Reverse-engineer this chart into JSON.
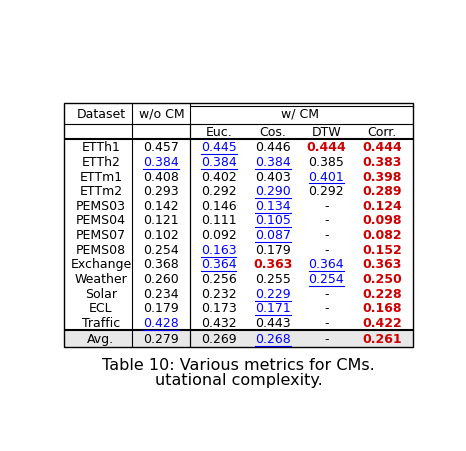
{
  "title": "Table 10: Various metrics for CMs.",
  "subtitle": "utational complexity.",
  "rows": [
    {
      "dataset": "ETTh1",
      "wo_cm": {
        "val": "0.457",
        "blue": false,
        "ul": false,
        "bold": false,
        "red": false
      },
      "euc": {
        "val": "0.445",
        "blue": true,
        "ul": true,
        "bold": false,
        "red": false
      },
      "cos": {
        "val": "0.446",
        "blue": false,
        "ul": false,
        "bold": false,
        "red": false
      },
      "dtw": {
        "val": "0.444",
        "blue": false,
        "ul": false,
        "bold": true,
        "red": true
      },
      "corr": {
        "val": "0.444",
        "blue": false,
        "ul": false,
        "bold": true,
        "red": true
      }
    },
    {
      "dataset": "ETTh2",
      "wo_cm": {
        "val": "0.384",
        "blue": true,
        "ul": true,
        "bold": false,
        "red": false
      },
      "euc": {
        "val": "0.384",
        "blue": true,
        "ul": true,
        "bold": false,
        "red": false
      },
      "cos": {
        "val": "0.384",
        "blue": true,
        "ul": true,
        "bold": false,
        "red": false
      },
      "dtw": {
        "val": "0.385",
        "blue": false,
        "ul": false,
        "bold": false,
        "red": false
      },
      "corr": {
        "val": "0.383",
        "blue": false,
        "ul": false,
        "bold": true,
        "red": true
      }
    },
    {
      "dataset": "ETTm1",
      "wo_cm": {
        "val": "0.408",
        "blue": false,
        "ul": false,
        "bold": false,
        "red": false
      },
      "euc": {
        "val": "0.402",
        "blue": false,
        "ul": false,
        "bold": false,
        "red": false
      },
      "cos": {
        "val": "0.403",
        "blue": false,
        "ul": false,
        "bold": false,
        "red": false
      },
      "dtw": {
        "val": "0.401",
        "blue": true,
        "ul": true,
        "bold": false,
        "red": false
      },
      "corr": {
        "val": "0.398",
        "blue": false,
        "ul": false,
        "bold": true,
        "red": true
      }
    },
    {
      "dataset": "ETTm2",
      "wo_cm": {
        "val": "0.293",
        "blue": false,
        "ul": false,
        "bold": false,
        "red": false
      },
      "euc": {
        "val": "0.292",
        "blue": false,
        "ul": false,
        "bold": false,
        "red": false
      },
      "cos": {
        "val": "0.290",
        "blue": true,
        "ul": true,
        "bold": false,
        "red": false
      },
      "dtw": {
        "val": "0.292",
        "blue": false,
        "ul": false,
        "bold": false,
        "red": false
      },
      "corr": {
        "val": "0.289",
        "blue": false,
        "ul": false,
        "bold": true,
        "red": true
      }
    },
    {
      "dataset": "PEMS03",
      "wo_cm": {
        "val": "0.142",
        "blue": false,
        "ul": false,
        "bold": false,
        "red": false
      },
      "euc": {
        "val": "0.146",
        "blue": false,
        "ul": false,
        "bold": false,
        "red": false
      },
      "cos": {
        "val": "0.134",
        "blue": true,
        "ul": true,
        "bold": false,
        "red": false
      },
      "dtw": {
        "val": "-",
        "blue": false,
        "ul": false,
        "bold": false,
        "red": false
      },
      "corr": {
        "val": "0.124",
        "blue": false,
        "ul": false,
        "bold": true,
        "red": true
      }
    },
    {
      "dataset": "PEMS04",
      "wo_cm": {
        "val": "0.121",
        "blue": false,
        "ul": false,
        "bold": false,
        "red": false
      },
      "euc": {
        "val": "0.111",
        "blue": false,
        "ul": false,
        "bold": false,
        "red": false
      },
      "cos": {
        "val": "0.105",
        "blue": true,
        "ul": true,
        "bold": false,
        "red": false
      },
      "dtw": {
        "val": "-",
        "blue": false,
        "ul": false,
        "bold": false,
        "red": false
      },
      "corr": {
        "val": "0.098",
        "blue": false,
        "ul": false,
        "bold": true,
        "red": true
      }
    },
    {
      "dataset": "PEMS07",
      "wo_cm": {
        "val": "0.102",
        "blue": false,
        "ul": false,
        "bold": false,
        "red": false
      },
      "euc": {
        "val": "0.092",
        "blue": false,
        "ul": false,
        "bold": false,
        "red": false
      },
      "cos": {
        "val": "0.087",
        "blue": true,
        "ul": true,
        "bold": false,
        "red": false
      },
      "dtw": {
        "val": "-",
        "blue": false,
        "ul": false,
        "bold": false,
        "red": false
      },
      "corr": {
        "val": "0.082",
        "blue": false,
        "ul": false,
        "bold": true,
        "red": true
      }
    },
    {
      "dataset": "PEMS08",
      "wo_cm": {
        "val": "0.254",
        "blue": false,
        "ul": false,
        "bold": false,
        "red": false
      },
      "euc": {
        "val": "0.163",
        "blue": true,
        "ul": true,
        "bold": false,
        "red": false
      },
      "cos": {
        "val": "0.179",
        "blue": false,
        "ul": false,
        "bold": false,
        "red": false
      },
      "dtw": {
        "val": "-",
        "blue": false,
        "ul": false,
        "bold": false,
        "red": false
      },
      "corr": {
        "val": "0.152",
        "blue": false,
        "ul": false,
        "bold": true,
        "red": true
      }
    },
    {
      "dataset": "Exchange",
      "wo_cm": {
        "val": "0.368",
        "blue": false,
        "ul": false,
        "bold": false,
        "red": false
      },
      "euc": {
        "val": "0.364",
        "blue": true,
        "ul": true,
        "bold": false,
        "red": false
      },
      "cos": {
        "val": "0.363",
        "blue": false,
        "ul": false,
        "bold": true,
        "red": true
      },
      "dtw": {
        "val": "0.364",
        "blue": true,
        "ul": true,
        "bold": false,
        "red": false
      },
      "corr": {
        "val": "0.363",
        "blue": false,
        "ul": false,
        "bold": true,
        "red": true
      }
    },
    {
      "dataset": "Weather",
      "wo_cm": {
        "val": "0.260",
        "blue": false,
        "ul": false,
        "bold": false,
        "red": false
      },
      "euc": {
        "val": "0.256",
        "blue": false,
        "ul": false,
        "bold": false,
        "red": false
      },
      "cos": {
        "val": "0.255",
        "blue": false,
        "ul": false,
        "bold": false,
        "red": false
      },
      "dtw": {
        "val": "0.254",
        "blue": true,
        "ul": true,
        "bold": false,
        "red": false
      },
      "corr": {
        "val": "0.250",
        "blue": false,
        "ul": false,
        "bold": true,
        "red": true
      }
    },
    {
      "dataset": "Solar",
      "wo_cm": {
        "val": "0.234",
        "blue": false,
        "ul": false,
        "bold": false,
        "red": false
      },
      "euc": {
        "val": "0.232",
        "blue": false,
        "ul": false,
        "bold": false,
        "red": false
      },
      "cos": {
        "val": "0.229",
        "blue": true,
        "ul": true,
        "bold": false,
        "red": false
      },
      "dtw": {
        "val": "-",
        "blue": false,
        "ul": false,
        "bold": false,
        "red": false
      },
      "corr": {
        "val": "0.228",
        "blue": false,
        "ul": false,
        "bold": true,
        "red": true
      }
    },
    {
      "dataset": "ECL",
      "wo_cm": {
        "val": "0.179",
        "blue": false,
        "ul": false,
        "bold": false,
        "red": false
      },
      "euc": {
        "val": "0.173",
        "blue": false,
        "ul": false,
        "bold": false,
        "red": false
      },
      "cos": {
        "val": "0.171",
        "blue": true,
        "ul": true,
        "bold": false,
        "red": false
      },
      "dtw": {
        "val": "-",
        "blue": false,
        "ul": false,
        "bold": false,
        "red": false
      },
      "corr": {
        "val": "0.168",
        "blue": false,
        "ul": false,
        "bold": true,
        "red": true
      }
    },
    {
      "dataset": "Traffic",
      "wo_cm": {
        "val": "0.428",
        "blue": true,
        "ul": true,
        "bold": false,
        "red": false
      },
      "euc": {
        "val": "0.432",
        "blue": false,
        "ul": false,
        "bold": false,
        "red": false
      },
      "cos": {
        "val": "0.443",
        "blue": false,
        "ul": false,
        "bold": false,
        "red": false
      },
      "dtw": {
        "val": "-",
        "blue": false,
        "ul": false,
        "bold": false,
        "red": false
      },
      "corr": {
        "val": "0.422",
        "blue": false,
        "ul": false,
        "bold": true,
        "red": true
      }
    }
  ],
  "avg_row": {
    "dataset": "Avg.",
    "wo_cm": {
      "val": "0.279",
      "blue": false,
      "ul": false,
      "bold": false,
      "red": false
    },
    "euc": {
      "val": "0.269",
      "blue": false,
      "ul": false,
      "bold": false,
      "red": false
    },
    "cos": {
      "val": "0.268",
      "blue": true,
      "ul": true,
      "bold": false,
      "red": false
    },
    "dtw": {
      "val": "-",
      "blue": false,
      "ul": false,
      "bold": false,
      "red": false
    },
    "corr": {
      "val": "0.261",
      "blue": false,
      "ul": false,
      "bold": true,
      "red": true
    }
  },
  "bg_color": "#ffffff",
  "avg_bg_color": "#e8e8e8",
  "blue_color": "#0000ff",
  "red_color": "#cc0000",
  "black_color": "#000000",
  "font_size": 9.0,
  "caption_font_size": 11.5
}
